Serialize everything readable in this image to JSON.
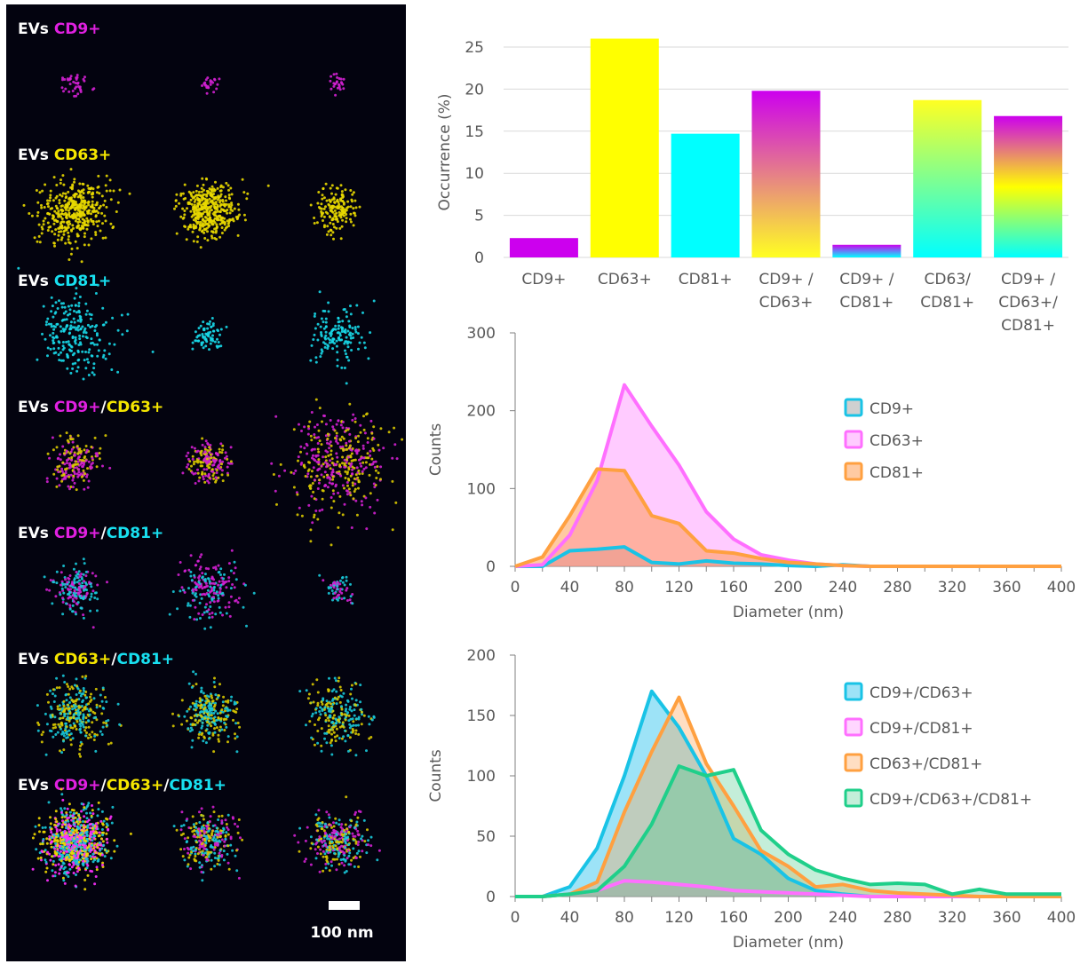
{
  "panel_micro": {
    "rows": [
      {
        "parts": [
          {
            "text": "EVs ",
            "color": "#ffffff"
          },
          {
            "text": "CD9+",
            "color": "#e020e0"
          }
        ],
        "clusters": [
          {
            "mix": [
              "#d020d0"
            ],
            "n": 40,
            "r": 13
          },
          {
            "mix": [
              "#d020d0"
            ],
            "n": 25,
            "r": 9
          },
          {
            "mix": [
              "#d020d0"
            ],
            "n": 25,
            "r": 9
          }
        ]
      },
      {
        "parts": [
          {
            "text": "EVs ",
            "color": "#ffffff"
          },
          {
            "text": "CD63+",
            "color": "#f5e600"
          }
        ],
        "clusters": [
          {
            "mix": [
              "#e8d800"
            ],
            "n": 420,
            "r": 34
          },
          {
            "mix": [
              "#e8d800"
            ],
            "n": 420,
            "r": 28
          },
          {
            "mix": [
              "#e8d800"
            ],
            "n": 160,
            "r": 22
          }
        ]
      },
      {
        "parts": [
          {
            "text": "EVs ",
            "color": "#ffffff"
          },
          {
            "text": "CD81+",
            "color": "#18e0f0"
          }
        ],
        "clusters": [
          {
            "mix": [
              "#18d8e8"
            ],
            "n": 220,
            "r": 40
          },
          {
            "mix": [
              "#18d8e8"
            ],
            "n": 70,
            "r": 13
          },
          {
            "mix": [
              "#18d8e8"
            ],
            "n": 140,
            "r": 28
          }
        ]
      },
      {
        "parts": [
          {
            "text": "EVs ",
            "color": "#ffffff"
          },
          {
            "text": "CD9+",
            "color": "#e020e0"
          },
          {
            "text": "/",
            "color": "#ffffff"
          },
          {
            "text": "CD63+",
            "color": "#f5e600"
          }
        ],
        "clusters": [
          {
            "mix": [
              "#d020d0",
              "#d8c800"
            ],
            "n": 200,
            "r": 26
          },
          {
            "mix": [
              "#d020d0",
              "#d8c800"
            ],
            "n": 180,
            "r": 22
          },
          {
            "mix": [
              "#d020d0",
              "#d8c800"
            ],
            "n": 420,
            "r": 50
          }
        ]
      },
      {
        "parts": [
          {
            "text": "EVs ",
            "color": "#ffffff"
          },
          {
            "text": "CD9+",
            "color": "#e020e0"
          },
          {
            "text": "/",
            "color": "#ffffff"
          },
          {
            "text": "CD81+",
            "color": "#18e0f0"
          }
        ],
        "clusters": [
          {
            "mix": [
              "#d020d0",
              "#18c8d8"
            ],
            "n": 180,
            "r": 22
          },
          {
            "mix": [
              "#18c8d8",
              "#d020d0"
            ],
            "n": 200,
            "r": 30
          },
          {
            "mix": [
              "#18c8d8",
              "#d020d0"
            ],
            "n": 60,
            "r": 13
          }
        ]
      },
      {
        "parts": [
          {
            "text": "EVs ",
            "color": "#ffffff"
          },
          {
            "text": "CD63+",
            "color": "#f5e600"
          },
          {
            "text": "/",
            "color": "#ffffff"
          },
          {
            "text": "CD81+",
            "color": "#18e0f0"
          }
        ],
        "clusters": [
          {
            "mix": [
              "#18c8d8",
              "#d8c800"
            ],
            "n": 300,
            "r": 32
          },
          {
            "mix": [
              "#d8c800",
              "#18c8d8"
            ],
            "n": 260,
            "r": 28
          },
          {
            "mix": [
              "#d8c800",
              "#18c8d8"
            ],
            "n": 240,
            "r": 32
          }
        ]
      },
      {
        "parts": [
          {
            "text": "EVs ",
            "color": "#ffffff"
          },
          {
            "text": "CD9+",
            "color": "#e020e0"
          },
          {
            "text": "/",
            "color": "#ffffff"
          },
          {
            "text": "CD63+",
            "color": "#f5e600"
          },
          {
            "text": "/",
            "color": "#ffffff"
          },
          {
            "text": "CD81+",
            "color": "#18e0f0"
          }
        ],
        "clusters": [
          {
            "mix": [
              "#ff30ff",
              "#f0d800",
              "#18c8d8"
            ],
            "n": 800,
            "r": 32
          },
          {
            "mix": [
              "#d8c800",
              "#d020d0",
              "#18c8d8"
            ],
            "n": 300,
            "r": 28
          },
          {
            "mix": [
              "#18c8d8",
              "#d8c800",
              "#d020d0"
            ],
            "n": 320,
            "r": 28
          }
        ]
      }
    ],
    "scale_bar_label": "100 nm"
  },
  "chart_data": [
    {
      "type": "bar",
      "ylabel": "Occurrence  (%)",
      "ylim": [
        0,
        25
      ],
      "yticks": [
        0,
        5,
        10,
        15,
        20,
        25
      ],
      "grid": true,
      "categories": [
        [
          "CD9+"
        ],
        [
          "CD63+"
        ],
        [
          "CD81+"
        ],
        [
          "CD9+ /",
          "CD63+"
        ],
        [
          "CD9+ /",
          "CD81+"
        ],
        [
          "CD63/",
          "CD81+"
        ],
        [
          "CD9+ /",
          "CD63+/",
          "CD81+"
        ]
      ],
      "values": [
        2.3,
        26.0,
        14.7,
        19.8,
        1.5,
        18.7,
        16.8
      ],
      "colors": [
        [
          "#cc00ee"
        ],
        [
          "#ffff00"
        ],
        [
          "#00ffff"
        ],
        [
          "#cc00ee",
          "#ffff22"
        ],
        [
          "#cc00ee",
          "#00ffff"
        ],
        [
          "#ffff22",
          "#00ffff"
        ],
        [
          "#cc00ee",
          "#ffff00",
          "#00ffff"
        ]
      ]
    },
    {
      "type": "area",
      "xlabel": "Diameter (nm)",
      "ylabel": "Counts",
      "xlim": [
        0,
        400
      ],
      "ylim": [
        0,
        300
      ],
      "xticks": [
        0,
        40,
        80,
        120,
        160,
        200,
        240,
        280,
        320,
        360,
        400
      ],
      "yticks": [
        0,
        100,
        200,
        300
      ],
      "legend_position": "right",
      "x": [
        0,
        20,
        40,
        60,
        80,
        100,
        120,
        140,
        160,
        180,
        200,
        220,
        240,
        260,
        280,
        300,
        320,
        340,
        360,
        380,
        400
      ],
      "series": [
        {
          "name": "CD9+",
          "color": "#19c3e6",
          "fill": "rgba(120,120,120,0.35)",
          "values": [
            0,
            0,
            20,
            22,
            25,
            5,
            3,
            7,
            4,
            3,
            1,
            0,
            2,
            0,
            0,
            0,
            0,
            0,
            0,
            0,
            0
          ]
        },
        {
          "name": "CD63+",
          "color": "#ff6fff",
          "fill": "rgba(255,140,255,0.45)",
          "values": [
            0,
            2,
            40,
            110,
            233,
            180,
            130,
            70,
            35,
            15,
            8,
            3,
            1,
            0,
            0,
            0,
            0,
            0,
            0,
            0,
            0
          ]
        },
        {
          "name": "CD81+",
          "color": "#ffa040",
          "fill": "rgba(255,150,70,0.5)",
          "values": [
            0,
            12,
            65,
            125,
            123,
            65,
            55,
            20,
            17,
            10,
            5,
            3,
            1,
            0,
            0,
            0,
            0,
            0,
            0,
            0,
            0
          ]
        }
      ]
    },
    {
      "type": "area",
      "xlabel": "Diameter (nm)",
      "ylabel": "Counts",
      "xlim": [
        0,
        400
      ],
      "ylim": [
        0,
        200
      ],
      "xticks": [
        0,
        40,
        80,
        120,
        160,
        200,
        240,
        280,
        320,
        360,
        400
      ],
      "yticks": [
        0,
        50,
        100,
        150,
        200
      ],
      "legend_position": "right",
      "x": [
        0,
        20,
        40,
        60,
        80,
        100,
        120,
        140,
        160,
        180,
        200,
        220,
        240,
        260,
        280,
        300,
        320,
        340,
        360,
        380,
        400
      ],
      "series": [
        {
          "name": "CD9+/CD63+",
          "color": "#19c3e6",
          "fill": "rgba(60,200,240,0.5)",
          "values": [
            0,
            0,
            8,
            40,
            100,
            170,
            140,
            100,
            48,
            35,
            15,
            5,
            2,
            0,
            0,
            0,
            0,
            0,
            0,
            0,
            0
          ]
        },
        {
          "name": "CD9+/CD81+",
          "color": "#ff6fff",
          "fill": "rgba(255,120,255,0.3)",
          "values": [
            0,
            0,
            2,
            5,
            13,
            12,
            10,
            8,
            5,
            4,
            3,
            2,
            1,
            0,
            0,
            0,
            0,
            0,
            0,
            0,
            0
          ]
        },
        {
          "name": "CD63+/CD81+",
          "color": "#ffa040",
          "fill": "rgba(255,160,80,0.35)",
          "values": [
            0,
            0,
            2,
            12,
            70,
            120,
            165,
            110,
            75,
            38,
            25,
            8,
            10,
            5,
            3,
            2,
            1,
            0,
            0,
            0,
            0
          ]
        },
        {
          "name": "CD9+/CD63+/CD81+",
          "color": "#1fcf8a",
          "fill": "rgba(60,200,130,0.3)",
          "values": [
            0,
            0,
            2,
            5,
            25,
            60,
            108,
            100,
            105,
            55,
            35,
            22,
            15,
            10,
            11,
            10,
            2,
            6,
            2,
            2,
            2
          ]
        }
      ]
    }
  ]
}
